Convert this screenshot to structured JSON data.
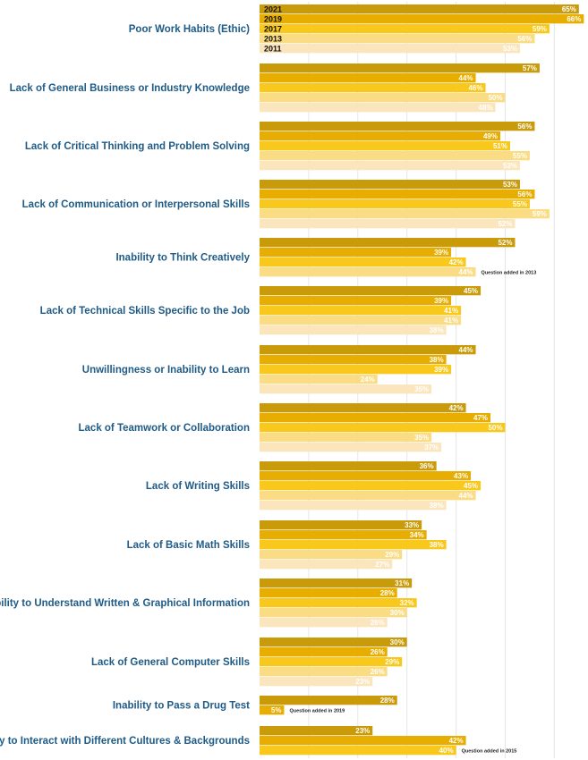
{
  "chart_data": {
    "type": "bar",
    "orientation": "horizontal",
    "unit": "%",
    "grid": true,
    "legend_position": "inside-first-category",
    "categories": [
      "Poor Work Habits (Ethic)",
      "Lack of General Business or Industry Knowledge",
      "Lack of Critical Thinking and Problem Solving",
      "Lack of Communication or Interpersonal Skills",
      "Inability to Think Creatively",
      "Lack of Technical Skills Specific to the Job",
      "Unwillingness or Inability to Learn",
      "Lack of Teamwork or Collaboration",
      "Lack of Writing Skills",
      "Lack of Basic Math Skills",
      "Inability to Understand Written & Graphical Information",
      "Lack of General Computer Skills",
      "Inability to Pass a Drug Test",
      "Inability to Interact with Different Cultures & Backgrounds"
    ],
    "series": [
      {
        "name": "2021",
        "color": "#c99a0a",
        "values": [
          65,
          57,
          56,
          53,
          52,
          45,
          44,
          42,
          36,
          33,
          31,
          30,
          28,
          23
        ]
      },
      {
        "name": "2019",
        "color": "#e7ad00",
        "values": [
          66,
          44,
          49,
          56,
          39,
          39,
          38,
          47,
          43,
          34,
          28,
          26,
          5,
          42
        ]
      },
      {
        "name": "2017",
        "color": "#f9c81c",
        "values": [
          59,
          46,
          51,
          55,
          42,
          41,
          39,
          50,
          45,
          38,
          32,
          29,
          null,
          40
        ]
      },
      {
        "name": "2013",
        "color": "#fadc85",
        "values": [
          56,
          50,
          55,
          59,
          44,
          41,
          24,
          35,
          44,
          29,
          30,
          26,
          null,
          null
        ]
      },
      {
        "name": "2011",
        "color": "#fbe5bd",
        "values": [
          53,
          48,
          53,
          52,
          null,
          38,
          35,
          37,
          38,
          27,
          26,
          23,
          null,
          null
        ]
      }
    ],
    "value_labels": [
      [
        "65%",
        "57%",
        "56%",
        "53%",
        "52%",
        "45%",
        "44%",
        "42%",
        "36%",
        "33%",
        "31%",
        "30%",
        "28%",
        "23%"
      ],
      [
        "66%",
        "44%",
        "49%",
        "56%",
        "39%",
        "39%",
        "38%",
        "47%",
        "43%",
        "34%",
        "28%",
        "26%",
        "5%",
        "42%"
      ],
      [
        "59%",
        "46%",
        "51%",
        "55%",
        "42%",
        "41%",
        "39%",
        "50%",
        "45%",
        "38%",
        "32%",
        "29%",
        "",
        "40%"
      ],
      [
        "56%",
        "50%",
        "55%",
        "59%",
        "44%",
        "41%",
        "24%",
        "35%",
        "44%",
        "29%",
        "30%",
        "26%",
        "",
        ""
      ],
      [
        "53%",
        "48%",
        "53%",
        "52%",
        "",
        "38%",
        "35%",
        "37%",
        "38%",
        "27%",
        "26%",
        "23%",
        "",
        ""
      ]
    ],
    "annotations": [
      {
        "category_index": 4,
        "series_index": 3,
        "text": "Question added in 2013"
      },
      {
        "category_index": 12,
        "series_index": 1,
        "text": "Question added in 2019"
      },
      {
        "category_index": 13,
        "series_index": 2,
        "text": "Question added in 2015"
      }
    ]
  }
}
